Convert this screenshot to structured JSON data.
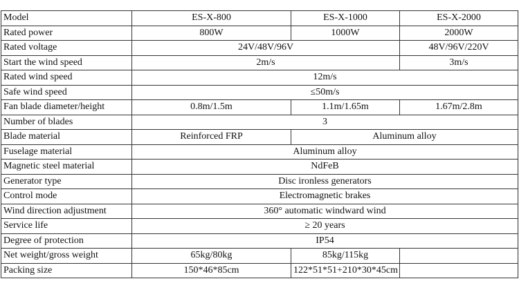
{
  "table": {
    "rows": [
      [
        "Model",
        "ES-X-800",
        "ES-X-1000",
        "ES-X-2000"
      ],
      [
        "Rated power",
        "800W",
        "1000W",
        "2000W"
      ],
      [
        "Rated voltage",
        "24V/48V/96V",
        "48V/96V/220V"
      ],
      [
        "Start the wind speed",
        "2m/s",
        "3m/s"
      ],
      [
        "Rated wind speed",
        "12m/s"
      ],
      [
        "Safe wind speed",
        "≤50m/s"
      ],
      [
        "Fan blade diameter/height",
        "0.8m/1.5m",
        "1.1m/1.65m",
        "1.67m/2.8m"
      ],
      [
        "Number of blades",
        "3"
      ],
      [
        "Blade material",
        "Reinforced FRP",
        "Aluminum alloy"
      ],
      [
        "Fuselage material",
        "Aluminum alloy"
      ],
      [
        "Magnetic steel material",
        "NdFeB"
      ],
      [
        "Generator type",
        "Disc ironless generators"
      ],
      [
        "Control mode",
        "Electromagnetic brakes"
      ],
      [
        "Wind direction adjustment",
        "360° automatic windward wind"
      ],
      [
        "Service life",
        "≥ 20 years"
      ],
      [
        "Degree of protection",
        "IP54"
      ],
      [
        "Net weight/gross weight",
        "65kg/80kg",
        "85kg/115kg"
      ],
      [
        "Packing size",
        "150*46*85cm",
        "122*51*51+210*30*45cm"
      ]
    ]
  }
}
